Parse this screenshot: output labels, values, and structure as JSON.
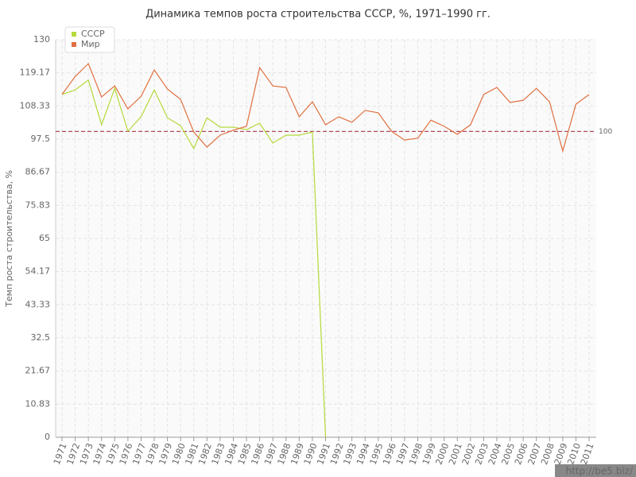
{
  "chart_data": {
    "type": "line",
    "title": "Динамика темпов роста строительства СССР, %, 1971–1990 гг.",
    "y_label": "Темп роста строительства, %",
    "categories": [
      "1971",
      "1972",
      "1973",
      "1974",
      "1975",
      "1976",
      "1977",
      "1978",
      "1979",
      "1980",
      "1981",
      "1982",
      "1983",
      "1984",
      "1985",
      "1986",
      "1987",
      "1988",
      "1989",
      "1990",
      "1991",
      "1992",
      "1993",
      "1994",
      "1995",
      "1996",
      "1997",
      "1998",
      "1999",
      "2000",
      "2001",
      "2002",
      "2003",
      "2004",
      "2005",
      "2006",
      "2007",
      "2008",
      "2009",
      "2010",
      "2011"
    ],
    "series": [
      {
        "name": "СССР",
        "color": "#b5d93a",
        "values": [
          112.1,
          113.6,
          116.8,
          102.2,
          114.1,
          100.1,
          104.8,
          113.6,
          104.5,
          101.9,
          94.4,
          104.5,
          101.4,
          101.4,
          100.6,
          102.7,
          96.2,
          98.8,
          98.8,
          99.8,
          0,
          null,
          null,
          null,
          null,
          null,
          null,
          null,
          null,
          null,
          null,
          null,
          null,
          null,
          null,
          null,
          null,
          null,
          null,
          null,
          null
        ]
      },
      {
        "name": "Мир",
        "color": "#e0703f",
        "values": [
          112.1,
          118,
          122.2,
          111.3,
          114.9,
          107.4,
          111.5,
          120.1,
          113.9,
          110.5,
          99.8,
          94.9,
          98.8,
          100.4,
          101.7,
          120.9,
          114.9,
          114.4,
          104.8,
          109.7,
          102.2,
          104.8,
          103,
          106.9,
          106.1,
          100.1,
          97.2,
          97.8,
          103.7,
          101.7,
          99.1,
          102.2,
          112.1,
          114.4,
          109.5,
          110.2,
          114.1,
          109.7,
          93.6,
          108.9,
          112.1
        ]
      }
    ],
    "ylim": [
      0,
      130
    ],
    "yticks": [
      0,
      10.83,
      21.67,
      32.5,
      43.33,
      54.17,
      65,
      75.83,
      86.67,
      97.5,
      108.33,
      119.17,
      130
    ],
    "grid": true,
    "reference_line": {
      "value": 100,
      "color": "#b04a5a"
    },
    "legend_position": "top-left",
    "watermark": "http://be5.biz/"
  }
}
